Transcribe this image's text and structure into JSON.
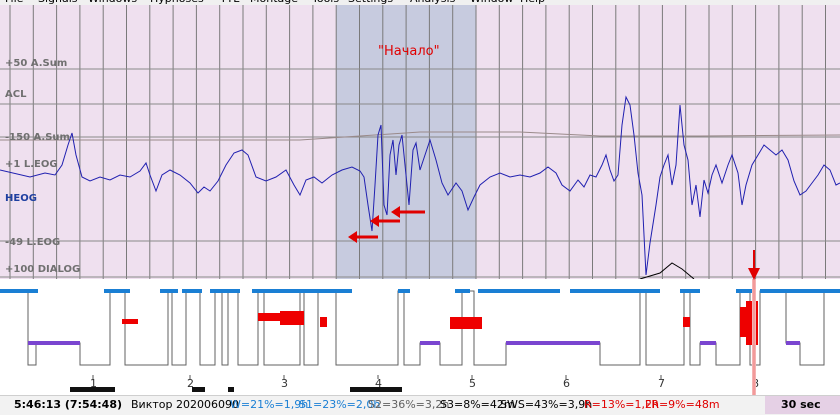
{
  "menu": [
    "File",
    "Signals",
    "Windows",
    "Hypnoses",
    "TTL",
    "Montage",
    "Tools",
    "Settings",
    "Analysis",
    "Window",
    "Help"
  ],
  "annotation": "\"Начало\"",
  "channels": {
    "asum50": "+50 A.Sum",
    "acl": "ACL",
    "asum150": "-150 A.Sum",
    "leog1": "+1 L.EOG",
    "heog": "HEOG",
    "leog49": "-49 L.EOG",
    "dialog": "+100 DIALOG"
  },
  "epoch_marks": [
    "1",
    "2",
    "3",
    "4",
    "5",
    "6",
    "7",
    "8"
  ],
  "status": {
    "time": "5:46:13 (7:54:48)",
    "patient": "Виктор 202006090",
    "w": "W=21%=1,9h",
    "s1": "S1=23%=2,0h",
    "s2": "S2=36%=3,2h",
    "s3": "S3=8%=42m",
    "sws": "SWS=43%=3,9h",
    "r": "R=13%=1,2h",
    "fr": "FR=9%=48m",
    "epoch": "30 sec"
  },
  "colors": {
    "bg": "#efe0ef",
    "grid": "#7a7a7a",
    "selection": "#c7cbdf",
    "signal": "#2020b0",
    "annotation": "#e00000",
    "wake": "#1a7fd4",
    "rem": "#7a45d0",
    "artifact": "#ee0000"
  }
}
